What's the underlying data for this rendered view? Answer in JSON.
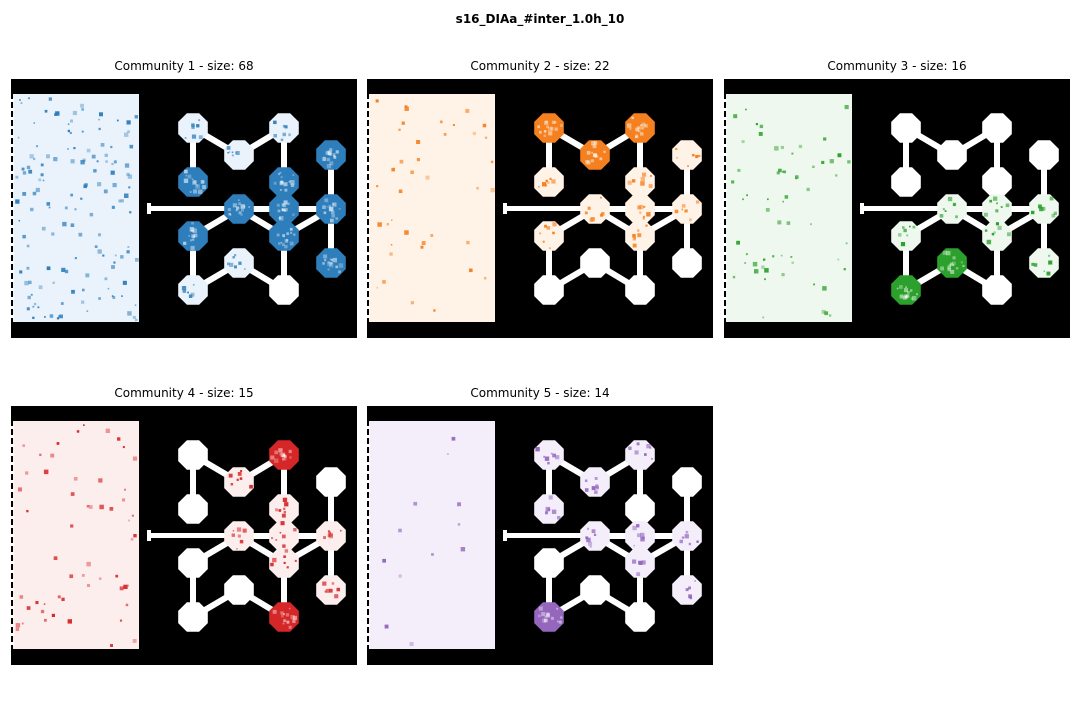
{
  "figure": {
    "title": "s16_DIAa_#inter_1.0h_10"
  },
  "panels": [
    {
      "title": "Community 1 - size: 68",
      "color": "#2f7ebc",
      "light": "#eaf3fb",
      "dense_nodes": [
        3,
        4,
        5,
        6,
        7,
        8,
        9,
        10,
        11
      ],
      "light_nodes": [
        0,
        1,
        2,
        12,
        13
      ],
      "rect_specks": 140
    },
    {
      "title": "Community 2 - size: 22",
      "color": "#f5801f",
      "light": "#fff3e8",
      "dense_nodes": [
        0,
        1,
        2
      ],
      "light_nodes": [
        3,
        4,
        5,
        6,
        7,
        8,
        9,
        10
      ],
      "rect_specks": 40
    },
    {
      "title": "Community 3 - size: 16",
      "color": "#2ca02c",
      "light": "#eef8ee",
      "dense_nodes": [
        12,
        13
      ],
      "light_nodes": [
        7,
        8,
        9,
        10,
        11,
        6
      ],
      "rect_specks": 60
    },
    {
      "title": "Community 4 - size: 15",
      "color": "#d62728",
      "light": "#fdeeee",
      "dense_nodes": [
        2,
        14
      ],
      "light_nodes": [
        1,
        6,
        7,
        8,
        10,
        11,
        4
      ],
      "rect_specks": 55
    },
    {
      "title": "Community 5 - size: 14",
      "color": "#9467bd",
      "light": "#f3eefa",
      "dense_nodes": [
        13
      ],
      "light_nodes": [
        0,
        1,
        2,
        3,
        6,
        7,
        10,
        11,
        8
      ],
      "rect_specks": 12
    }
  ]
}
